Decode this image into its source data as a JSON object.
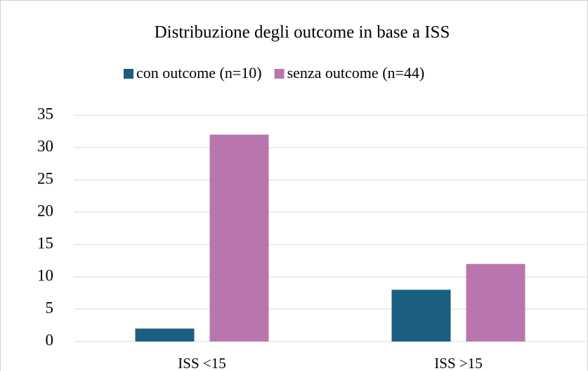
{
  "chart_data": {
    "type": "bar",
    "title": "Distribuzione degli outcome in base a ISS",
    "categories": [
      "ISS <15",
      "ISS >15"
    ],
    "series": [
      {
        "name": "con outcome (n=10)",
        "color": "#1a5f7f",
        "values": [
          2,
          8
        ]
      },
      {
        "name": "senza outcome (n=44)",
        "color": "#b976ae",
        "values": [
          32,
          12
        ]
      }
    ],
    "ylim": [
      0,
      35
    ],
    "yticks": [
      0,
      5,
      10,
      15,
      20,
      25,
      30,
      35
    ],
    "grid": true,
    "legend": "top"
  }
}
